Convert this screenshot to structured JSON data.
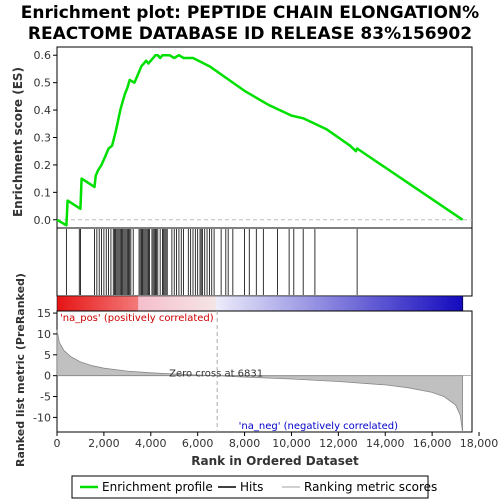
{
  "chart_data": {
    "type": "line",
    "title_lines": [
      "Enrichment plot: PEPTIDE CHAIN ELONGATION%",
      "REACTOME DATABASE ID RELEASE 83%156902"
    ],
    "es_panel": {
      "ylabel": "Enrichment score (ES)",
      "ylim": [
        -0.03,
        0.63
      ],
      "yticks": [
        0.0,
        0.1,
        0.2,
        0.3,
        0.4,
        0.5,
        0.6
      ],
      "ytick_labels": [
        "0.0",
        "0.1",
        "0.2",
        "0.3",
        "0.4",
        "0.5",
        "0.6"
      ],
      "color": "#00e000",
      "series": [
        {
          "name": "Enrichment profile",
          "x": [
            0,
            400,
            450,
            1000,
            1050,
            1600,
            1650,
            1750,
            1900,
            2050,
            2200,
            2350,
            2500,
            2600,
            2700,
            2800,
            2900,
            3000,
            3100,
            3300,
            3500,
            3600,
            3700,
            3800,
            3900,
            4000,
            4100,
            4200,
            4300,
            4400,
            4500,
            4600,
            4700,
            4800,
            5000,
            5200,
            5400,
            5800,
            6500,
            7000,
            8000,
            9000,
            10000,
            10500,
            11000,
            11500,
            12000,
            12500,
            12750,
            12800,
            17300
          ],
          "y": [
            0.0,
            -0.02,
            0.07,
            0.04,
            0.15,
            0.12,
            0.16,
            0.18,
            0.2,
            0.23,
            0.26,
            0.27,
            0.32,
            0.36,
            0.4,
            0.43,
            0.46,
            0.48,
            0.51,
            0.5,
            0.54,
            0.56,
            0.57,
            0.58,
            0.57,
            0.58,
            0.59,
            0.6,
            0.6,
            0.59,
            0.6,
            0.6,
            0.6,
            0.6,
            0.59,
            0.6,
            0.59,
            0.59,
            0.56,
            0.53,
            0.47,
            0.42,
            0.38,
            0.37,
            0.35,
            0.33,
            0.3,
            0.27,
            0.25,
            0.26,
            0.0
          ]
        }
      ]
    },
    "hits_panel": {
      "hits_x": [
        400,
        950,
        1000,
        1600,
        1700,
        1800,
        1900,
        2000,
        2100,
        2200,
        2300,
        2400,
        2450,
        2500,
        2550,
        2600,
        2650,
        2700,
        2750,
        2800,
        2850,
        2900,
        2950,
        3000,
        3050,
        3100,
        3150,
        3250,
        3500,
        3550,
        3600,
        3650,
        3700,
        3750,
        3800,
        3850,
        3900,
        3950,
        4050,
        4100,
        4150,
        4200,
        4250,
        4300,
        4400,
        4500,
        4550,
        4600,
        4650,
        4700,
        4900,
        5000,
        5100,
        5200,
        5300,
        5400,
        5600,
        5700,
        5800,
        5900,
        6000,
        6100,
        6150,
        6200,
        6300,
        6400,
        6500,
        6600,
        6700,
        7000,
        7200,
        7300,
        7500,
        8000,
        8200,
        8500,
        8800,
        9400,
        9900,
        10100,
        10500,
        11000,
        12800
      ]
    },
    "ranked_panel": {
      "ylabel": "Ranked list metric (PreRanked)",
      "ylim": [
        -13.5,
        15.5
      ],
      "yticks": [
        -10,
        -5,
        0,
        5,
        10,
        15
      ],
      "ytick_labels": [
        "-10",
        "-5",
        "0",
        "5",
        "10",
        "15"
      ],
      "x": [
        0,
        100,
        300,
        600,
        1000,
        1500,
        2000,
        3000,
        4000,
        5000,
        6000,
        6831,
        8000,
        10000,
        12000,
        14000,
        15000,
        16000,
        16500,
        17000,
        17200,
        17300
      ],
      "y": [
        11,
        8,
        6,
        4.5,
        3.3,
        2.4,
        1.8,
        1.1,
        0.7,
        0.4,
        0.15,
        0.0,
        -0.35,
        -0.8,
        -1.4,
        -2.2,
        -2.9,
        -4.0,
        -5.0,
        -7.0,
        -9.5,
        -13.5
      ],
      "fill_color": "#c0c0c0",
      "line_color": "#888888",
      "zero_cross_label": "Zero cross at 6831",
      "zero_cross_x": 6831,
      "pos_label": "'na_pos' (positively correlated)",
      "neg_label": "'na_neg' (negatively correlated)",
      "pos_label_color": "#cc0000",
      "neg_label_color": "#0000cc"
    },
    "xaxis": {
      "label": "Rank in Ordered Dataset",
      "xlim": [
        0,
        17700
      ],
      "xticks": [
        0,
        2000,
        4000,
        6000,
        8000,
        10000,
        12000,
        14000,
        16000,
        18000
      ],
      "xtick_labels": [
        "0",
        "2,000",
        "4,000",
        "6,000",
        "8,000",
        "10,000",
        "12,000",
        "14,000",
        "16,000",
        "18,000"
      ],
      "list_size": 17300
    },
    "legend": {
      "placement": "bottom",
      "items": [
        {
          "name": "Enrichment profile",
          "color": "#00e000",
          "kind": "line-thick"
        },
        {
          "name": "Hits",
          "color": "#000000",
          "kind": "line"
        },
        {
          "name": "Ranking metric scores",
          "color": "#c0c0c0",
          "kind": "line"
        }
      ]
    }
  }
}
